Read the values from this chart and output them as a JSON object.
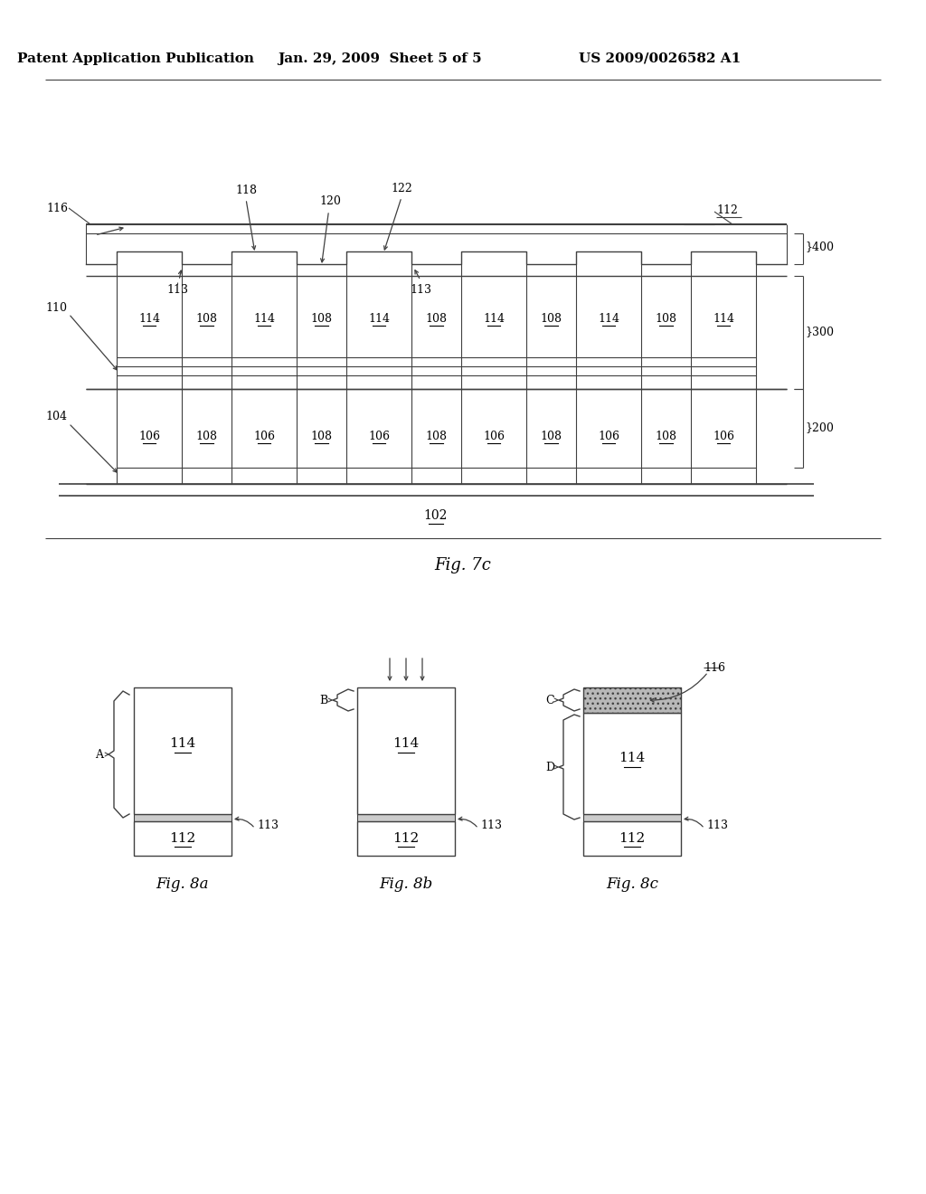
{
  "bg_color": "#ffffff",
  "header_text1": "Patent Application Publication",
  "header_text2": "Jan. 29, 2009  Sheet 5 of 5",
  "header_text3": "US 2009/0026582 A1",
  "fig7c_label": "Fig. 7c",
  "fig8a_label": "Fig. 8a",
  "fig8b_label": "Fig. 8b",
  "fig8c_label": "Fig. 8c",
  "line_color": "#404040",
  "text_color": "#000000"
}
